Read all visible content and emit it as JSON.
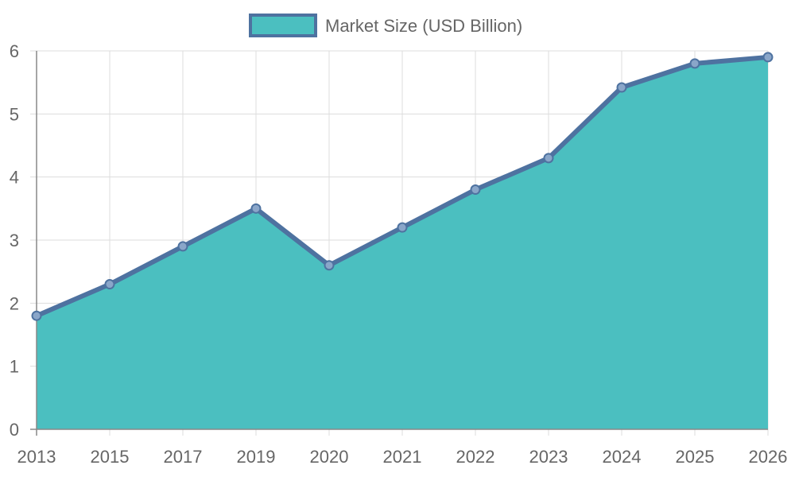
{
  "chart_data": {
    "type": "area",
    "title": "",
    "xlabel": "",
    "ylabel": "",
    "categories": [
      "2013",
      "2015",
      "2017",
      "2019",
      "2020",
      "2021",
      "2022",
      "2023",
      "2024",
      "2025",
      "2026"
    ],
    "series": [
      {
        "name": "Market Size (USD Billion)",
        "values": [
          1.8,
          2.3,
          2.9,
          3.5,
          2.6,
          3.2,
          3.8,
          4.3,
          5.42,
          5.8,
          5.9
        ]
      }
    ],
    "ylim": [
      0,
      6
    ],
    "yticks": [
      "0",
      "1",
      "2",
      "3",
      "4",
      "5",
      "6"
    ],
    "grid": true,
    "legend_position": "top-center",
    "colors": {
      "fill": "#4bbfc0",
      "line": "#4e72a0",
      "point": "#8aa6c9",
      "grid": "#dddddd",
      "axis": "#888888"
    }
  }
}
